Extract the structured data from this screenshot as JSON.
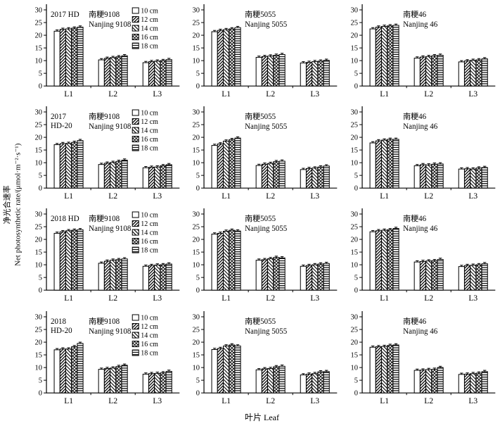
{
  "figure": {
    "y_axis_title_cn": "净光合速率",
    "y_axis_title_en": "Net photosynthetic rate/(μmol·m⁻²·s⁻¹)",
    "x_axis_title": "叶片 Leaf"
  },
  "chart_data": {
    "type": "bar",
    "grid": {
      "rows": 4,
      "cols": 3
    },
    "categories": [
      "L1",
      "L2",
      "L3"
    ],
    "series_names": [
      "10 cm",
      "12 cm",
      "14 cm",
      "16 cm",
      "18 cm"
    ],
    "ylim": [
      0,
      30
    ],
    "yticks": [
      0,
      5,
      10,
      15,
      20,
      25,
      30
    ],
    "error_bar": 0.5,
    "legend_position": "top-right-of-left-column-subplots",
    "subplots": [
      {
        "row": 0,
        "col": 0,
        "year_line1": "2017  HD",
        "year_line2": "",
        "cultivar_cn": "南粳9108",
        "cultivar_en": "Nanjing 9108",
        "show_legend": true,
        "values": [
          [
            21.6,
            22.3,
            22.5,
            22.8,
            23.2
          ],
          [
            10.3,
            10.9,
            11.2,
            11.5,
            11.9
          ],
          [
            9.2,
            9.6,
            9.8,
            10.0,
            10.4
          ]
        ]
      },
      {
        "row": 0,
        "col": 1,
        "year_line1": "",
        "year_line2": "",
        "cultivar_cn": "南粳5055",
        "cultivar_en": "Nanjing 5055",
        "show_legend": false,
        "values": [
          [
            21.4,
            21.9,
            22.2,
            22.5,
            23.0
          ],
          [
            11.3,
            11.6,
            11.8,
            12.1,
            12.4
          ],
          [
            9.1,
            9.3,
            9.6,
            9.8,
            10.1
          ]
        ]
      },
      {
        "row": 0,
        "col": 2,
        "year_line1": "",
        "year_line2": "",
        "cultivar_cn": "南粳46",
        "cultivar_en": "Nanjing 46",
        "show_legend": false,
        "values": [
          [
            22.5,
            23.2,
            23.5,
            23.7,
            23.9
          ],
          [
            11.0,
            11.4,
            11.6,
            11.9,
            12.1
          ],
          [
            9.5,
            9.9,
            10.1,
            10.3,
            10.7
          ]
        ]
      },
      {
        "row": 1,
        "col": 0,
        "year_line1": "2017",
        "year_line2": "HD-20",
        "cultivar_cn": "南粳9108",
        "cultivar_en": "Nanjing 9108",
        "show_legend": true,
        "values": [
          [
            17.1,
            17.5,
            17.6,
            18.0,
            18.7
          ],
          [
            9.3,
            9.8,
            10.1,
            10.5,
            11.0
          ],
          [
            8.0,
            8.2,
            8.3,
            8.8,
            9.2
          ]
        ]
      },
      {
        "row": 1,
        "col": 1,
        "year_line1": "",
        "year_line2": "",
        "cultivar_cn": "南粳5055",
        "cultivar_en": "Nanjing 5055",
        "show_legend": false,
        "values": [
          [
            16.8,
            17.4,
            18.5,
            19.1,
            19.7
          ],
          [
            8.9,
            9.4,
            9.7,
            10.4,
            10.6
          ],
          [
            7.3,
            7.7,
            7.9,
            8.3,
            8.7
          ]
        ]
      },
      {
        "row": 1,
        "col": 2,
        "year_line1": "",
        "year_line2": "",
        "cultivar_cn": "南粳46",
        "cultivar_en": "Nanjing 46",
        "show_legend": false,
        "values": [
          [
            17.8,
            18.6,
            18.9,
            19.2,
            19.2
          ],
          [
            8.8,
            9.2,
            9.1,
            9.4,
            9.5
          ],
          [
            7.5,
            7.6,
            7.5,
            7.9,
            8.1
          ]
        ]
      },
      {
        "row": 2,
        "col": 0,
        "year_line1": "2018  HD",
        "year_line2": "",
        "cultivar_cn": "南粳9108",
        "cultivar_en": "Nanjing 9108",
        "show_legend": true,
        "values": [
          [
            22.4,
            23.0,
            23.4,
            23.6,
            23.8
          ],
          [
            10.6,
            11.4,
            11.8,
            12.0,
            12.3
          ],
          [
            9.4,
            9.7,
            9.9,
            10.0,
            10.3
          ]
        ]
      },
      {
        "row": 2,
        "col": 1,
        "year_line1": "",
        "year_line2": "",
        "cultivar_cn": "南粳5055",
        "cultivar_en": "Nanjing 5055",
        "show_legend": false,
        "values": [
          [
            22.1,
            22.4,
            23.2,
            23.6,
            23.3
          ],
          [
            11.8,
            12.0,
            12.4,
            12.9,
            12.7
          ],
          [
            9.4,
            9.7,
            10.0,
            10.3,
            10.5
          ]
        ]
      },
      {
        "row": 2,
        "col": 2,
        "year_line1": "",
        "year_line2": "",
        "cultivar_cn": "南粳46",
        "cultivar_en": "Nanjing 46",
        "show_legend": false,
        "values": [
          [
            23.0,
            23.4,
            23.6,
            23.8,
            24.3
          ],
          [
            11.1,
            11.3,
            11.5,
            11.6,
            12.1
          ],
          [
            9.3,
            9.7,
            9.8,
            10.0,
            10.4
          ]
        ]
      },
      {
        "row": 3,
        "col": 0,
        "year_line1": "2018",
        "year_line2": "HD-20",
        "cultivar_cn": "南粳9108",
        "cultivar_en": "Nanjing 9108",
        "show_legend": true,
        "values": [
          [
            17.0,
            17.3,
            17.3,
            18.2,
            19.5
          ],
          [
            9.3,
            9.6,
            9.8,
            10.4,
            10.9
          ],
          [
            7.4,
            7.6,
            7.7,
            7.9,
            8.5
          ]
        ]
      },
      {
        "row": 3,
        "col": 1,
        "year_line1": "",
        "year_line2": "",
        "cultivar_cn": "南粳5055",
        "cultivar_en": "Nanjing 5055",
        "show_legend": false,
        "values": [
          [
            17.1,
            17.5,
            18.5,
            18.9,
            18.5
          ],
          [
            9.1,
            9.5,
            9.6,
            10.3,
            10.5
          ],
          [
            7.1,
            7.4,
            7.6,
            8.3,
            8.4
          ]
        ]
      },
      {
        "row": 3,
        "col": 2,
        "year_line1": "",
        "year_line2": "",
        "cultivar_cn": "南粳46",
        "cultivar_en": "Nanjing 46",
        "show_legend": false,
        "values": [
          [
            18.0,
            18.2,
            18.3,
            18.7,
            18.9
          ],
          [
            8.9,
            9.0,
            9.2,
            9.3,
            10.0
          ],
          [
            7.3,
            7.4,
            7.6,
            7.8,
            8.4
          ]
        ]
      }
    ]
  }
}
